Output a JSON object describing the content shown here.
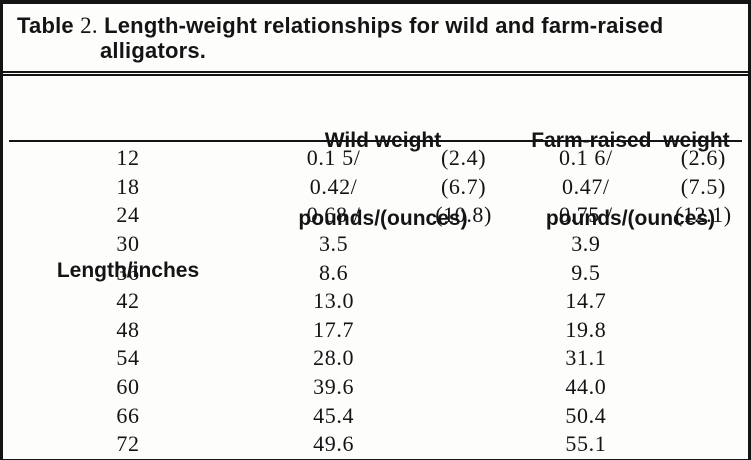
{
  "colors": {
    "text": "#141414",
    "line": "#141414",
    "background": "#fdfdfc"
  },
  "table": {
    "title": {
      "prefix": "Table ",
      "number": "2.",
      "rest": " Length-weight relationships for wild and farm-raised",
      "line2": "alligators."
    },
    "columns": [
      {
        "label": "Length/inches"
      },
      {
        "label_line1": "Wild weight",
        "label_line2": "pounds/(ounces)"
      },
      {
        "label_line1": "Farm-raised  weight",
        "label_line2": "pounds/(ounces)"
      }
    ],
    "rows": [
      {
        "length": "12",
        "wild_pounds": "0.1 5/",
        "wild_ounces": "(2.4)",
        "farm_pounds": "0.1 6/",
        "farm_ounces": "(2.6)"
      },
      {
        "length": "18",
        "wild_pounds": "0.42/",
        "wild_ounces": "(6.7)",
        "farm_pounds": "0.47/",
        "farm_ounces": "(7.5)"
      },
      {
        "length": "24",
        "wild_pounds": "0.68 /",
        "wild_ounces": "(10.8)",
        "farm_pounds": "0.75 /",
        "farm_ounces": "(12.1)"
      },
      {
        "length": "30",
        "wild_pounds": "3.5",
        "wild_ounces": "",
        "farm_pounds": "3.9",
        "farm_ounces": ""
      },
      {
        "length": "36",
        "wild_pounds": "8.6",
        "wild_ounces": "",
        "farm_pounds": "9.5",
        "farm_ounces": ""
      },
      {
        "length": "42",
        "wild_pounds": "13.0",
        "wild_ounces": "",
        "farm_pounds": "14.7",
        "farm_ounces": ""
      },
      {
        "length": "48",
        "wild_pounds": "17.7",
        "wild_ounces": "",
        "farm_pounds": "19.8",
        "farm_ounces": ""
      },
      {
        "length": "54",
        "wild_pounds": "28.0",
        "wild_ounces": "",
        "farm_pounds": "31.1",
        "farm_ounces": ""
      },
      {
        "length": "60",
        "wild_pounds": "39.6",
        "wild_ounces": "",
        "farm_pounds": "44.0",
        "farm_ounces": ""
      },
      {
        "length": "66",
        "wild_pounds": "45.4",
        "wild_ounces": "",
        "farm_pounds": "50.4",
        "farm_ounces": ""
      },
      {
        "length": "72",
        "wild_pounds": "49.6",
        "wild_ounces": "",
        "farm_pounds": "55.1",
        "farm_ounces": ""
      }
    ]
  }
}
